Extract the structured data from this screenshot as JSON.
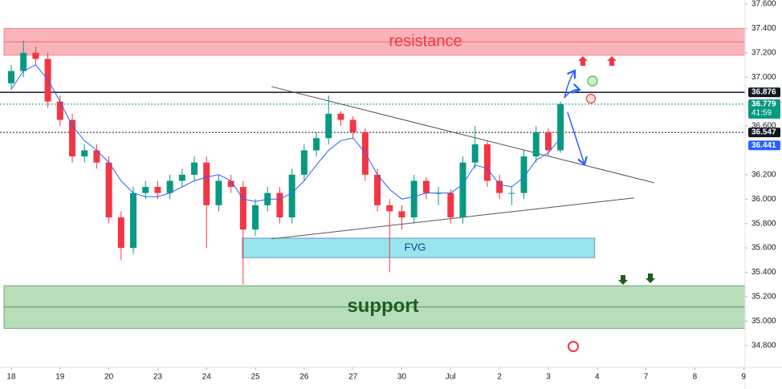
{
  "chart_data": {
    "type": "candlestick",
    "xlim": [
      -0.23,
      15.03
    ],
    "ylim": [
      34.64,
      37.633
    ],
    "xticks": [
      {
        "value": 0,
        "label": "18"
      },
      {
        "value": 1,
        "label": "19"
      },
      {
        "value": 2,
        "label": "20"
      },
      {
        "value": 3,
        "label": "23"
      },
      {
        "value": 4,
        "label": "24"
      },
      {
        "value": 5,
        "label": "25"
      },
      {
        "value": 6,
        "label": "26"
      },
      {
        "value": 7,
        "label": "27"
      },
      {
        "value": 8,
        "label": "30"
      },
      {
        "value": 9,
        "label": "Jul"
      },
      {
        "value": 10,
        "label": "2"
      },
      {
        "value": 11,
        "label": "3"
      },
      {
        "value": 12,
        "label": "4"
      },
      {
        "value": 13,
        "label": "7"
      },
      {
        "value": 14,
        "label": "8"
      },
      {
        "value": 15,
        "label": "9"
      }
    ],
    "yticks": [
      {
        "value": 37.6,
        "label": "37.600"
      },
      {
        "value": 37.4,
        "label": "37.400"
      },
      {
        "value": 37.2,
        "label": "37.200"
      },
      {
        "value": 37.0,
        "label": "37.000"
      },
      {
        "value": 36.6,
        "label": "36.600"
      },
      {
        "value": 36.2,
        "label": "36.200"
      },
      {
        "value": 36.0,
        "label": "36.000"
      },
      {
        "value": 35.8,
        "label": "35.800"
      },
      {
        "value": 35.6,
        "label": "35.600"
      },
      {
        "value": 35.4,
        "label": "35.400"
      },
      {
        "value": 35.2,
        "label": "35.200"
      },
      {
        "value": 35.0,
        "label": "35.000"
      },
      {
        "value": 34.8,
        "label": "34.800"
      }
    ],
    "grid": false,
    "up_color": "#089981",
    "down_color": "#f23645",
    "ma_color": "#2962ff",
    "x": [
      0,
      0.25,
      0.5,
      0.75,
      1,
      1.25,
      1.5,
      1.75,
      2,
      2.25,
      2.5,
      2.75,
      3,
      3.25,
      3.5,
      3.75,
      4,
      4.25,
      4.5,
      4.75,
      5,
      5.25,
      5.5,
      5.75,
      6,
      6.25,
      6.5,
      6.75,
      7,
      7.25,
      7.5,
      7.75,
      8,
      8.25,
      8.5,
      8.75,
      9,
      9.25,
      9.5,
      9.75,
      10,
      10.25,
      10.5,
      10.75,
      11,
      11.25
    ],
    "open": [
      36.95,
      37.05,
      37.2,
      37.15,
      36.8,
      36.65,
      36.35,
      36.4,
      36.3,
      35.85,
      35.6,
      36.05,
      36.1,
      36.05,
      36.15,
      36.2,
      36.3,
      35.95,
      36.15,
      36.1,
      35.75,
      35.95,
      36.05,
      35.85,
      36.2,
      36.4,
      36.5,
      36.7,
      36.65,
      36.55,
      36.2,
      35.95,
      35.9,
      35.85,
      36.15,
      36.05,
      36.05,
      35.85,
      36.3,
      36.45,
      36.15,
      36.05,
      36.05,
      36.35,
      36.55,
      36.4
    ],
    "high": [
      37.1,
      37.3,
      37.25,
      37.2,
      36.85,
      36.7,
      36.45,
      36.45,
      36.35,
      35.9,
      36.1,
      36.15,
      36.15,
      36.2,
      36.25,
      36.35,
      36.35,
      36.2,
      36.2,
      36.15,
      36.0,
      36.1,
      36.1,
      36.25,
      36.45,
      36.55,
      36.85,
      36.72,
      36.68,
      36.58,
      36.25,
      36.0,
      35.95,
      36.2,
      36.18,
      36.1,
      36.08,
      36.35,
      36.6,
      36.48,
      36.2,
      36.1,
      36.4,
      36.6,
      36.58,
      36.8
    ],
    "low": [
      36.9,
      37.0,
      37.1,
      36.75,
      36.6,
      36.3,
      36.3,
      36.25,
      35.8,
      35.5,
      35.55,
      36.0,
      36.0,
      36.0,
      36.1,
      36.15,
      35.6,
      35.9,
      36.05,
      35.3,
      35.7,
      35.9,
      35.8,
      35.8,
      36.15,
      36.35,
      36.45,
      36.6,
      36.5,
      36.15,
      35.9,
      35.4,
      35.75,
      35.8,
      36.0,
      35.95,
      35.8,
      35.8,
      36.25,
      36.1,
      36.0,
      35.95,
      36.0,
      36.3,
      36.35,
      36.38
    ],
    "close": [
      37.05,
      37.2,
      37.15,
      36.8,
      36.65,
      36.35,
      36.4,
      36.3,
      35.85,
      35.6,
      36.05,
      36.1,
      36.05,
      36.15,
      36.2,
      36.3,
      35.95,
      36.15,
      36.1,
      35.75,
      35.95,
      36.05,
      35.85,
      36.2,
      36.4,
      36.5,
      36.7,
      36.65,
      36.55,
      36.2,
      35.95,
      35.9,
      35.85,
      36.15,
      36.05,
      36.05,
      35.85,
      36.3,
      36.45,
      36.15,
      36.05,
      36.05,
      36.35,
      36.55,
      36.4,
      36.78
    ],
    "ma": [
      36.9,
      37.05,
      37.1,
      36.98,
      36.8,
      36.6,
      36.48,
      36.4,
      36.3,
      36.15,
      36.05,
      36.02,
      36.02,
      36.05,
      36.1,
      36.15,
      36.18,
      36.2,
      36.15,
      36.0,
      35.98,
      36.0,
      36.0,
      36.05,
      36.15,
      36.28,
      36.4,
      36.48,
      36.5,
      36.38,
      36.2,
      36.08,
      36.0,
      36.02,
      36.05,
      36.05,
      36.05,
      36.12,
      36.28,
      36.25,
      36.12,
      36.1,
      36.18,
      36.32,
      36.38,
      36.5
    ],
    "zones": [
      {
        "name": "resistance",
        "low": 37.18,
        "high": 37.4,
        "x0": -0.23,
        "x1": 15.03,
        "color": "#f7a1a8",
        "text_color": "#f23645"
      },
      {
        "name": "support",
        "low": 34.94,
        "high": 35.29,
        "x0": -0.23,
        "x1": 15.03,
        "color": "#a5d6a7",
        "text_color": "#1b5e20"
      },
      {
        "name": "FVG",
        "low": 35.52,
        "high": 35.68,
        "x0": 4.65,
        "x1": 11.95,
        "color": "#80deea",
        "text_color": "#1a3a8a"
      }
    ],
    "trendlines": [
      {
        "x": [
          5.33,
          13.17
        ],
        "y": [
          36.923,
          36.134
        ]
      },
      {
        "x": [
          5.33,
          12.76
        ],
        "y": [
          35.674,
          36.01
        ]
      }
    ],
    "levels": [
      {
        "value": 36.876,
        "color": "#131722",
        "style": "solid"
      },
      {
        "value": 36.779,
        "color": "#089981",
        "style": "dotted"
      },
      {
        "value": 36.547,
        "color": "#131722",
        "style": "dotted"
      },
      {
        "value": 36.441,
        "color": "#2962ff",
        "style": "none"
      }
    ],
    "countdown": "41:59"
  }
}
